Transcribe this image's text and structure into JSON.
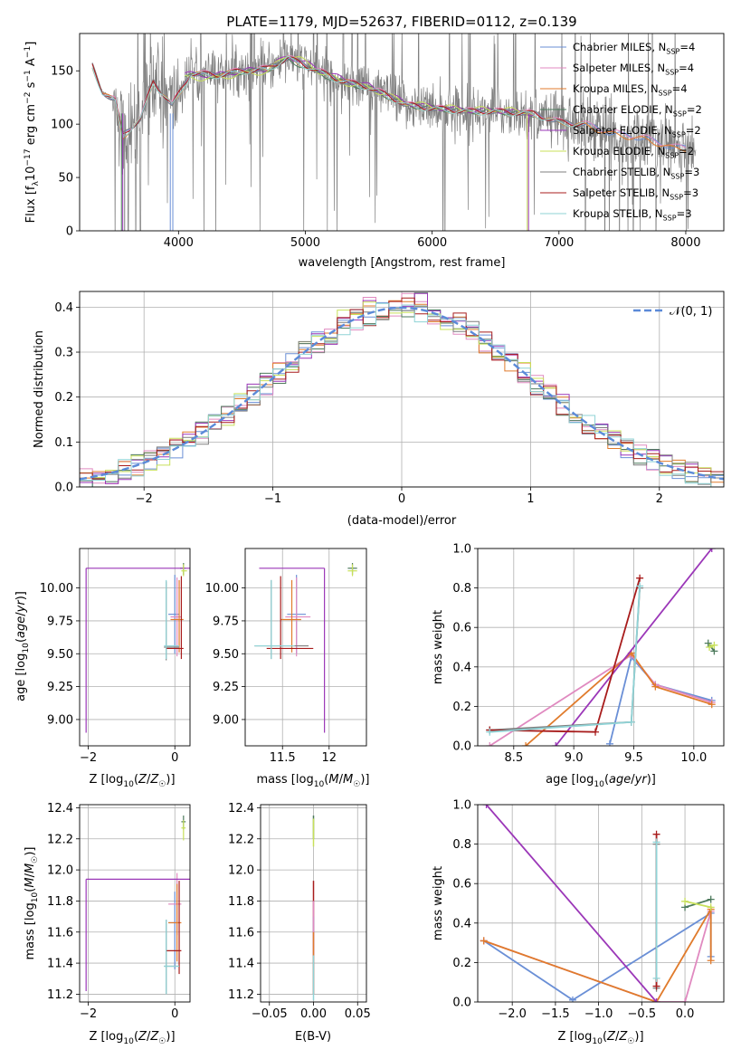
{
  "chart_data": [
    {
      "id": "spectrum",
      "type": "line",
      "title": "PLATE=1179, MJD=52637, FIBERID=0112, z=0.139",
      "xlabel": "wavelength [Angstrom, rest frame]",
      "ylabel": "Flux [f_λ10⁻¹⁷ erg cm⁻² s⁻¹ A⁻¹]",
      "xlim": [
        3220,
        8300
      ],
      "ylim": [
        0,
        185
      ],
      "xticks": [
        4000,
        5000,
        6000,
        7000,
        8000
      ],
      "yticks": [
        0,
        50,
        100,
        150
      ],
      "grid": false,
      "legend_position": "top-right",
      "data_color": "#7f7f7f",
      "series": [
        {
          "name": "Chabrier MILES, N_SSP=4",
          "color": "#6a8fd6",
          "x": [
            3320,
            3400,
            3500,
            3560,
            3700,
            3800,
            3950,
            4100,
            4300,
            4500,
            4700,
            4860,
            4950,
            5100,
            5300,
            5500,
            5800,
            6000,
            6300,
            6500,
            6800,
            7000,
            7200,
            7400,
            7700,
            7900,
            8000
          ],
          "y": [
            155,
            130,
            122,
            90,
            105,
            140,
            118,
            148,
            146,
            150,
            152,
            162,
            158,
            150,
            140,
            135,
            118,
            115,
            112,
            112,
            110,
            102,
            100,
            92,
            86,
            78,
            78
          ]
        },
        {
          "name": "Salpeter MILES, N_SSP=4",
          "color": "#e08ac0",
          "x": [
            3320,
            3400,
            3500,
            3560,
            3700,
            3800,
            3950,
            4100,
            4300,
            4500,
            4700,
            4860,
            4950,
            5100,
            5300,
            5500,
            5800,
            6000,
            6300,
            6500,
            6800,
            7000,
            7200,
            7400,
            7700,
            7900,
            8000
          ],
          "y": [
            156,
            131,
            123,
            91,
            106,
            141,
            119,
            149,
            147,
            151,
            153,
            163,
            159,
            151,
            141,
            136,
            119,
            116,
            113,
            113,
            111,
            103,
            101,
            93,
            87,
            79,
            79
          ]
        },
        {
          "name": "Kroupa MILES, N_SSP=4",
          "color": "#e07b2c",
          "x": [
            3320,
            3400,
            3500,
            3560,
            3700,
            3800,
            3950,
            4100,
            4300,
            4500,
            4700,
            4860,
            4950,
            5100,
            5300,
            5500,
            5800,
            6000,
            6300,
            6500,
            6800,
            7000,
            7200,
            7400,
            7700,
            7900,
            8000
          ],
          "y": [
            154,
            130,
            121,
            88,
            104,
            139,
            117,
            147,
            146,
            149,
            151,
            161,
            157,
            149,
            140,
            134,
            117,
            114,
            111,
            111,
            109,
            101,
            99,
            91,
            85,
            77,
            77
          ]
        },
        {
          "name": "Chabrier ELODIE, N_SSP=2",
          "color": "#4d7a5c",
          "x": [
            4050,
            4300,
            4500,
            4700,
            4860,
            4950,
            5100,
            5300,
            5500,
            5800,
            6000,
            6300,
            6500,
            6800
          ],
          "y": [
            146,
            145,
            149,
            151,
            160,
            156,
            148,
            139,
            134,
            118,
            115,
            112,
            112,
            109
          ]
        },
        {
          "name": "Salpeter ELODIE, N_SSP=2",
          "color": "#9b37b8",
          "x": [
            4050,
            4300,
            4500,
            4700,
            4860,
            4950,
            5100,
            5300,
            5500,
            5800,
            6000,
            6300,
            6500,
            6800
          ],
          "y": [
            147,
            146,
            150,
            152,
            164,
            160,
            152,
            142,
            136,
            120,
            116,
            113,
            113,
            110
          ]
        },
        {
          "name": "Kroupa ELODIE, N_SSP=2",
          "color": "#c8e05a",
          "x": [
            4050,
            4300,
            4500,
            4700,
            4860,
            4950,
            5100,
            5300,
            5500,
            5800,
            6000,
            6300,
            6500,
            6800
          ],
          "y": [
            143,
            143,
            147,
            149,
            166,
            162,
            150,
            139,
            134,
            120,
            117,
            114,
            114,
            112
          ]
        },
        {
          "name": "Chabrier STELIB, N_SSP=3",
          "color": "#7f7f7f",
          "x": [
            3320,
            3400,
            3500,
            3560,
            3700,
            3800,
            3950,
            4100,
            4300,
            4500,
            4700,
            4860,
            4950,
            5100,
            5300,
            5500,
            5800,
            6000,
            6300,
            6500,
            6800,
            7000,
            7200
          ],
          "y": [
            155,
            130,
            122,
            90,
            105,
            140,
            118,
            148,
            146,
            150,
            152,
            162,
            158,
            150,
            140,
            135,
            118,
            115,
            112,
            112,
            110,
            102,
            100
          ]
        },
        {
          "name": "Salpeter STELIB, N_SSP=3",
          "color": "#a81c1c",
          "x": [
            3320,
            3400,
            3500,
            3560,
            3700,
            3800,
            3950,
            4100,
            4300,
            4500,
            4700,
            4860,
            4950,
            5100,
            5300,
            5500,
            5800,
            6000,
            6300,
            6500,
            6800,
            7000,
            7200
          ],
          "y": [
            155,
            131,
            122,
            90,
            105,
            140,
            118,
            148,
            146,
            150,
            152,
            162,
            158,
            150,
            140,
            135,
            118,
            115,
            112,
            112,
            110,
            102,
            100
          ]
        },
        {
          "name": "Kroupa STELIB, N_SSP=3",
          "color": "#8fd3d6",
          "x": [
            3320,
            3400,
            3500,
            3560,
            3700,
            3800,
            3950,
            4100,
            4300,
            4500,
            4700,
            4860,
            4950,
            5100,
            5300,
            5500,
            5800,
            6000,
            6300,
            6500,
            6800,
            7000,
            7200
          ],
          "y": [
            154,
            129,
            121,
            89,
            104,
            139,
            117,
            147,
            145,
            149,
            151,
            161,
            157,
            149,
            139,
            134,
            117,
            114,
            111,
            111,
            109,
            101,
            99
          ]
        }
      ]
    },
    {
      "id": "residuals",
      "type": "line",
      "title": "",
      "xlabel": "(data-model)/error",
      "ylabel": "Normed distribution",
      "xlim": [
        -2.5,
        2.5
      ],
      "ylim": [
        0,
        0.435
      ],
      "xticks": [
        -2,
        -1,
        0,
        1,
        2
      ],
      "yticks": [
        0.0,
        0.1,
        0.2,
        0.3,
        0.4
      ],
      "grid": true,
      "legend_position": "top-right",
      "legend": [
        {
          "label": "𝒩(0, 1)",
          "color": "#5b8ad8",
          "style": "dashed"
        }
      ],
      "histogram_bins": 50,
      "histogram_series_colors": [
        "#6a8fd6",
        "#e08ac0",
        "#e07b2c",
        "#4d7a5c",
        "#9b37b8",
        "#c8e05a",
        "#7f7f7f",
        "#a81c1c",
        "#8fd3d6"
      ],
      "curve": "standard normal pdf"
    },
    {
      "id": "age_vs_Z",
      "type": "scatter",
      "xlabel": "Z [log₁₀(Z/Z☉)]",
      "ylabel": "age  [log₁₀(age/yr)]",
      "xlim": [
        -2.2,
        0.35
      ],
      "ylim": [
        8.8,
        10.3
      ],
      "xticks": [
        -2,
        0
      ],
      "yticks": [
        9.0,
        9.25,
        9.5,
        9.75,
        10.0
      ],
      "grid": true
    },
    {
      "id": "age_vs_mass",
      "type": "scatter",
      "xlabel": "mass [log₁₀(M/M☉)]",
      "ylabel": "",
      "xlim": [
        11.1,
        12.4
      ],
      "ylim": [
        8.8,
        10.3
      ],
      "xticks": [
        11.5,
        12.0
      ],
      "yticks": [
        9.0,
        9.25,
        9.5,
        9.75,
        10.0
      ],
      "grid": true
    },
    {
      "id": "weight_vs_age",
      "type": "line",
      "xlabel": "age  [log₁₀(age/yr)]",
      "ylabel": "mass weight",
      "xlim": [
        8.2,
        10.25
      ],
      "ylim": [
        0,
        1.0
      ],
      "xticks": [
        8.5,
        9.0,
        9.5,
        10.0
      ],
      "yticks": [
        0.0,
        0.2,
        0.4,
        0.6,
        0.8,
        1.0
      ],
      "grid": true,
      "series": [
        {
          "color": "#6a8fd6",
          "x": [
            9.3,
            9.48,
            9.68,
            10.15
          ],
          "y": [
            0.01,
            0.45,
            0.31,
            0.23
          ]
        },
        {
          "color": "#e08ac0",
          "x": [
            8.3,
            9.48,
            9.68,
            10.15
          ],
          "y": [
            0.0,
            0.46,
            0.31,
            0.22
          ]
        },
        {
          "color": "#e07b2c",
          "x": [
            8.6,
            9.48,
            9.68,
            10.15
          ],
          "y": [
            0.0,
            0.47,
            0.3,
            0.21
          ]
        },
        {
          "color": "#4d7a5c",
          "x": [
            10.12,
            10.17
          ],
          "y": [
            0.52,
            0.48
          ]
        },
        {
          "color": "#9b37b8",
          "x": [
            8.85,
            10.15
          ],
          "y": [
            0.0,
            1.0
          ]
        },
        {
          "color": "#c8e05a",
          "x": [
            10.13,
            10.17
          ],
          "y": [
            0.5,
            0.51
          ]
        },
        {
          "color": "#7f7f7f",
          "x": [
            8.3,
            9.48,
            9.55
          ],
          "y": [
            0.08,
            0.12,
            0.8
          ]
        },
        {
          "color": "#a81c1c",
          "x": [
            8.3,
            9.18,
            9.55
          ],
          "y": [
            0.08,
            0.07,
            0.85
          ]
        },
        {
          "color": "#8fd3d6",
          "x": [
            8.3,
            9.48,
            9.55
          ],
          "y": [
            0.07,
            0.12,
            0.81
          ]
        }
      ]
    },
    {
      "id": "mass_vs_Z",
      "type": "scatter",
      "xlabel": "Z [log₁₀(Z/Z☉)]",
      "ylabel": "mass [log₁₀(M/M☉)]",
      "xlim": [
        -2.2,
        0.35
      ],
      "ylim": [
        11.15,
        12.42
      ],
      "xticks": [
        -2,
        0
      ],
      "yticks": [
        11.2,
        11.4,
        11.6,
        11.8,
        12.0,
        12.2,
        12.4
      ],
      "grid": true
    },
    {
      "id": "mass_vs_ebv",
      "type": "scatter",
      "xlabel": "E(B-V)",
      "ylabel": "",
      "xlim": [
        -0.06,
        0.06
      ],
      "ylim": [
        11.15,
        12.42
      ],
      "xticks": [
        -0.05,
        0.0,
        0.05
      ],
      "yticks": [
        11.2,
        11.4,
        11.6,
        11.8,
        12.0,
        12.2,
        12.4
      ],
      "grid": true
    },
    {
      "id": "weight_vs_Z",
      "type": "line",
      "xlabel": "Z [log₁₀(Z/Z☉)]",
      "ylabel": "mass weight",
      "xlim": [
        -2.4,
        0.45
      ],
      "ylim": [
        0,
        1.0
      ],
      "xticks": [
        -2.0,
        -1.5,
        -1.0,
        -0.5,
        0.0
      ],
      "yticks": [
        0.0,
        0.2,
        0.4,
        0.6,
        0.8,
        1.0
      ],
      "grid": true,
      "series": [
        {
          "color": "#6a8fd6",
          "x": [
            -2.33,
            -1.3,
            0.3,
            0.3
          ],
          "y": [
            0.31,
            0.01,
            0.45,
            0.23
          ]
        },
        {
          "color": "#e08ac0",
          "x": [
            -2.33,
            -0.33,
            0.0,
            0.3
          ],
          "y": [
            0.31,
            0.0,
            0.0,
            0.46
          ]
        },
        {
          "color": "#e07b2c",
          "x": [
            -2.33,
            -0.33,
            0.3,
            0.3
          ],
          "y": [
            0.31,
            0.0,
            0.47,
            0.21
          ]
        },
        {
          "color": "#4d7a5c",
          "x": [
            0.0,
            0.3
          ],
          "y": [
            0.48,
            0.52
          ]
        },
        {
          "color": "#9b37b8",
          "x": [
            -2.3,
            -0.33
          ],
          "y": [
            1.0,
            0.0
          ]
        },
        {
          "color": "#c8e05a",
          "x": [
            0.0,
            0.3
          ],
          "y": [
            0.51,
            0.48
          ]
        },
        {
          "color": "#7f7f7f",
          "x": [
            -0.33,
            -0.33
          ],
          "y": [
            0.07,
            0.8
          ]
        },
        {
          "color": "#a81c1c",
          "x": [
            -0.33,
            -0.33
          ],
          "y": [
            0.08,
            0.85
          ]
        },
        {
          "color": "#8fd3d6",
          "x": [
            -0.33,
            -0.33
          ],
          "y": [
            0.12,
            0.81
          ]
        }
      ]
    }
  ]
}
